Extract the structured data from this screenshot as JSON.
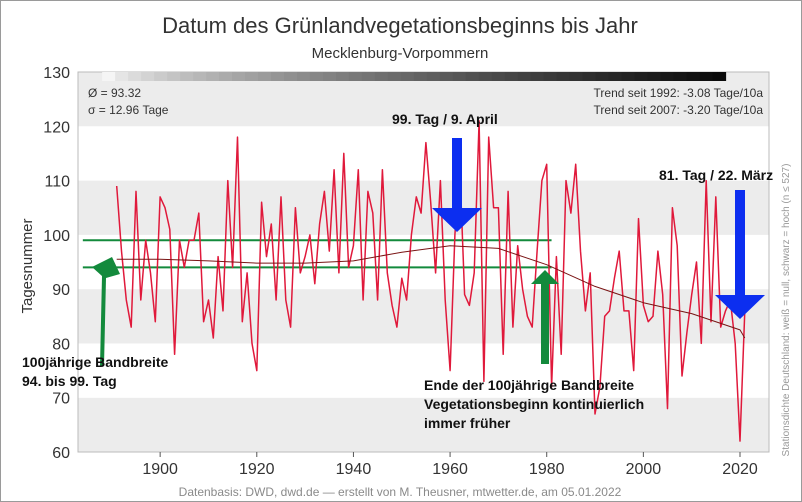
{
  "chart_data": {
    "type": "line",
    "title": "Datum des Grünlandvegetationsbeginns bis Jahr",
    "subtitle": "Mecklenburg-Vorpommern",
    "xlabel": "",
    "ylabel": "Tagesnummer",
    "xlim": [
      1883,
      2026
    ],
    "ylim": [
      60,
      130
    ],
    "x_ticks": [
      1900,
      1920,
      1940,
      1960,
      1980,
      2000,
      2020
    ],
    "y_ticks": [
      60,
      70,
      80,
      90,
      100,
      110,
      120,
      130
    ],
    "grid": "horizontal bands",
    "series": [
      {
        "color": "#e0193b",
        "x": [
          1891,
          1892,
          1893,
          1894,
          1895,
          1896,
          1897,
          1898,
          1899,
          1900,
          1901,
          1902,
          1903,
          1904,
          1905,
          1906,
          1907,
          1908,
          1909,
          1910,
          1911,
          1912,
          1913,
          1914,
          1915,
          1916,
          1917,
          1918,
          1919,
          1920,
          1921,
          1922,
          1923,
          1924,
          1925,
          1926,
          1927,
          1928,
          1929,
          1930,
          1931,
          1932,
          1933,
          1934,
          1935,
          1936,
          1937,
          1938,
          1939,
          1940,
          1941,
          1942,
          1943,
          1944,
          1945,
          1946,
          1947,
          1948,
          1949,
          1950,
          1951,
          1952,
          1953,
          1954,
          1955,
          1956,
          1957,
          1958,
          1959,
          1960,
          1961,
          1962,
          1963,
          1964,
          1965,
          1966,
          1967,
          1968,
          1969,
          1970,
          1971,
          1972,
          1973,
          1974,
          1975,
          1976,
          1977,
          1978,
          1979,
          1980,
          1981,
          1982,
          1983,
          1984,
          1985,
          1986,
          1987,
          1988,
          1989,
          1990,
          1991,
          1992,
          1993,
          1994,
          1995,
          1996,
          1997,
          1998,
          1999,
          2000,
          2001,
          2002,
          2003,
          2004,
          2005,
          2006,
          2007,
          2008,
          2009,
          2010,
          2011,
          2012,
          2013,
          2014,
          2015,
          2016,
          2017,
          2018,
          2019,
          2020,
          2021
        ],
        "values": [
          109,
          97,
          88,
          83,
          108,
          88,
          99,
          93,
          84,
          107,
          105,
          101,
          78,
          99,
          94,
          99,
          99,
          104,
          84,
          88,
          81,
          96,
          86,
          110,
          94,
          118,
          84,
          93,
          80,
          75,
          106,
          96,
          102,
          88,
          107,
          88,
          83,
          105,
          93,
          96,
          100,
          91,
          102,
          108,
          97,
          112,
          93,
          115,
          94,
          98,
          112,
          88,
          108,
          104,
          88,
          112,
          93,
          87,
          83,
          92,
          88,
          100,
          107,
          104,
          117,
          106,
          93,
          110,
          88,
          75,
          100,
          113,
          89,
          87,
          93,
          121,
          73,
          118,
          105,
          105,
          78,
          108,
          83,
          98,
          90,
          85,
          83,
          97,
          110,
          113,
          72,
          96,
          78,
          110,
          104,
          113,
          97,
          86,
          93,
          67,
          72,
          85,
          86,
          92,
          97,
          86,
          86,
          75,
          103,
          87,
          84,
          85,
          97,
          89,
          68,
          105,
          98,
          74,
          82,
          89,
          95,
          80,
          110,
          84,
          107,
          83,
          86,
          88,
          80,
          62,
          86
        ]
      },
      {
        "color": "#7a1414",
        "x": [
          1891,
          1900,
          1910,
          1920,
          1930,
          1940,
          1950,
          1960,
          1970,
          1980,
          1990,
          2000,
          2010,
          2020,
          2021
        ],
        "values": [
          95.5,
          95.5,
          95.2,
          94.8,
          94.8,
          95.2,
          96.8,
          98.0,
          97.5,
          94.5,
          90.5,
          87.5,
          85.5,
          82.5,
          81
        ]
      }
    ],
    "band": [
      94,
      99
    ],
    "stats": {
      "mean": "Ø = 93.32",
      "sigma": "σ = 12.96 Tage",
      "trend1992": "Trend seit 1992: -3.08 Tage/10a",
      "trend2007": "Trend seit 2007: -3.20 Tage/10a"
    },
    "annotations": [
      {
        "text": "99. Tag / 9. April"
      },
      {
        "text": "81. Tag / 22. März"
      },
      {
        "text": "100jährige Bandbreite"
      },
      {
        "text": "94. bis 99. Tag"
      },
      {
        "text": "Ende der 100jährige Bandbreite"
      },
      {
        "text": "Vegetationsbeginn kontinuierlich"
      },
      {
        "text": "immer früher"
      }
    ],
    "right_note": "Stationsdichte Deutschland: weiß = null, schwarz = hoch (n ≤ 527)",
    "source": "Datenbasis: DWD, dwd.de — erstellt von M. Theusner, mtwetter.de, am 05.01.2022"
  }
}
